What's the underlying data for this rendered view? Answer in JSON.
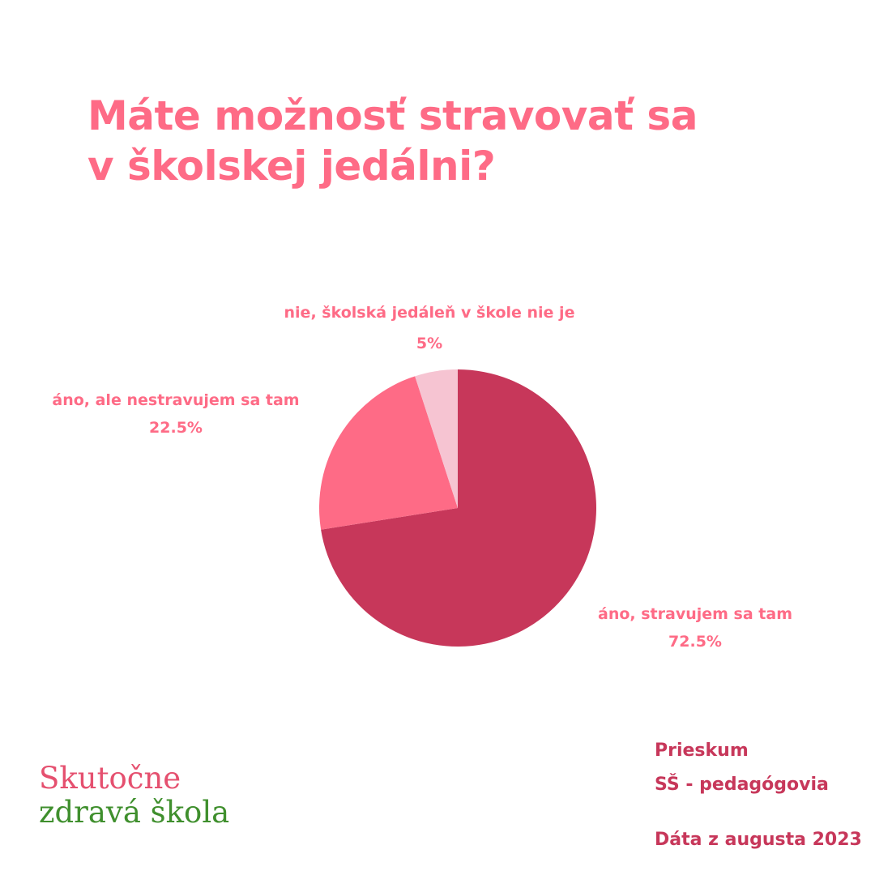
{
  "title": {
    "line1": "Máte možnosť stravovať sa",
    "line2": "v školskej jedálni?"
  },
  "chart_data": {
    "type": "pie",
    "slices": [
      {
        "label": "áno, stravujem sa tam",
        "value": 72.5,
        "value_label": "72.5%",
        "color": "#c7375a"
      },
      {
        "label": "áno, ale nestravujem sa tam",
        "value": 22.5,
        "value_label": "22.5%",
        "color": "#fe6b86"
      },
      {
        "label": "nie, školská jedáleň v škole nie je",
        "value": 5,
        "value_label": "5%",
        "color": "#f6c4d2"
      }
    ],
    "start": "12 o'clock",
    "direction": "clockwise",
    "label_color": "#fe6b86"
  },
  "footer": {
    "survey": "Prieskum",
    "group": "SŠ - pedagógovia",
    "date": "Dáta z augusta 2023"
  },
  "logo": {
    "line1": "Skutočne",
    "line2": "zdravá škola"
  }
}
